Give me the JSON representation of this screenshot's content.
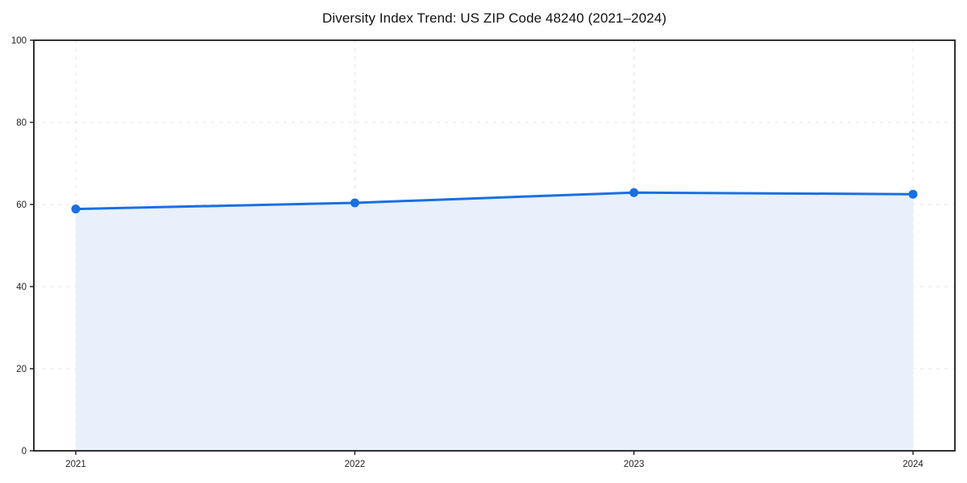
{
  "chart_data": {
    "type": "area",
    "title": "Diversity Index Trend: US ZIP Code 48240 (2021–2024)",
    "categories": [
      "2021",
      "2022",
      "2023",
      "2024"
    ],
    "series": [
      {
        "name": "Diversity Index",
        "values": [
          58.9,
          60.4,
          62.9,
          62.5
        ]
      }
    ],
    "xlabel": "",
    "ylabel": "",
    "ylim": [
      0,
      100
    ],
    "yticks": [
      0,
      20,
      40,
      60,
      80,
      100
    ],
    "grid": "dashed-both-axes",
    "legend": "none",
    "marker": "circle",
    "colors": {
      "line": "#1a6fe3",
      "marker": "#1a6fe3",
      "fill": "#e8f0fc",
      "grid": "#e4e4e4",
      "spine": "#1a1a1a",
      "tick": "#1a1a1a",
      "tick_label": "#222222",
      "title": "#111111",
      "background": "#ffffff"
    }
  }
}
